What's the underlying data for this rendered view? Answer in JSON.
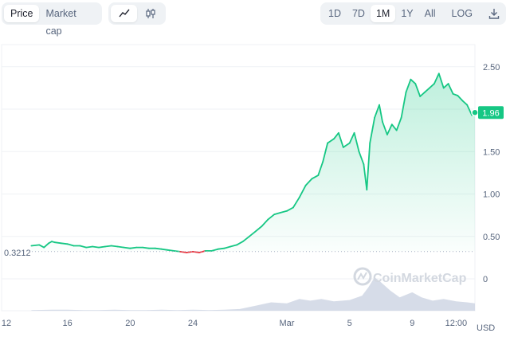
{
  "toolbar": {
    "metric_tabs": [
      {
        "label": "Price",
        "active": true
      },
      {
        "label": "Market cap",
        "active": false
      }
    ],
    "chart_type_icons": [
      {
        "icon": "line-chart-icon",
        "active": true
      },
      {
        "icon": "candlestick-icon",
        "active": false
      }
    ],
    "range_tabs": [
      {
        "label": "1D",
        "active": false
      },
      {
        "label": "7D",
        "active": false
      },
      {
        "label": "1M",
        "active": true
      },
      {
        "label": "1Y",
        "active": false
      },
      {
        "label": "All",
        "active": false
      }
    ],
    "log_label": "LOG",
    "download_icon": "download-icon"
  },
  "watermark": "CoinMarketCap",
  "colors": {
    "up": "#16c784",
    "down": "#ea3943",
    "volume": "#cfd6e4",
    "grid": "#eff2f5"
  },
  "chart_data": {
    "type": "line",
    "title": "",
    "xlabel": "",
    "ylabel": "",
    "currency_label": "USD",
    "baseline": {
      "value": 0.3212,
      "label": "0.3212"
    },
    "current": {
      "value": 1.96,
      "label": "1.96"
    },
    "ylim": [
      -0.2,
      2.7
    ],
    "y_ticks": [
      {
        "value": 0,
        "label": "0"
      },
      {
        "value": 0.5,
        "label": "0.50"
      },
      {
        "value": 1.0,
        "label": "1.00"
      },
      {
        "value": 1.5,
        "label": "1.50"
      },
      {
        "value": 2.0,
        "label": "2.00"
      },
      {
        "value": 2.5,
        "label": "2.50"
      }
    ],
    "x_ticks": [
      {
        "value": 0,
        "label": "12"
      },
      {
        "value": 4,
        "label": "16"
      },
      {
        "value": 8,
        "label": "20"
      },
      {
        "value": 12,
        "label": "24"
      },
      {
        "value": 18,
        "label": "Mar"
      },
      {
        "value": 22,
        "label": "5"
      },
      {
        "value": 26,
        "label": "9"
      },
      {
        "value": 28.8,
        "label": "12:00"
      }
    ],
    "xlim": [
      0,
      30
    ],
    "series": [
      {
        "points": [
          [
            1.7,
            0.39
          ],
          [
            2.2,
            0.4
          ],
          [
            2.5,
            0.37
          ],
          [
            2.8,
            0.42
          ],
          [
            3.0,
            0.44
          ],
          [
            3.2,
            0.43
          ],
          [
            3.6,
            0.42
          ],
          [
            4.0,
            0.41
          ],
          [
            4.4,
            0.39
          ],
          [
            4.8,
            0.39
          ],
          [
            5.2,
            0.37
          ],
          [
            5.6,
            0.38
          ],
          [
            6.0,
            0.37
          ],
          [
            6.4,
            0.38
          ],
          [
            6.8,
            0.39
          ],
          [
            7.2,
            0.38
          ],
          [
            7.6,
            0.37
          ],
          [
            8.0,
            0.36
          ],
          [
            8.4,
            0.37
          ],
          [
            8.8,
            0.37
          ],
          [
            9.2,
            0.36
          ],
          [
            9.6,
            0.36
          ],
          [
            10.0,
            0.35
          ],
          [
            10.4,
            0.34
          ],
          [
            10.8,
            0.33
          ],
          [
            11.2,
            0.32
          ],
          [
            11.6,
            0.31
          ],
          [
            12.0,
            0.32
          ],
          [
            12.4,
            0.31
          ],
          [
            12.8,
            0.33
          ],
          [
            13.2,
            0.33
          ],
          [
            13.6,
            0.35
          ],
          [
            14.0,
            0.36
          ],
          [
            14.4,
            0.38
          ],
          [
            14.8,
            0.4
          ],
          [
            15.2,
            0.44
          ],
          [
            15.6,
            0.5
          ],
          [
            16.0,
            0.56
          ],
          [
            16.4,
            0.62
          ],
          [
            16.8,
            0.7
          ],
          [
            17.2,
            0.76
          ],
          [
            17.6,
            0.78
          ],
          [
            18.0,
            0.8
          ],
          [
            18.4,
            0.84
          ],
          [
            18.8,
            0.96
          ],
          [
            19.2,
            1.1
          ],
          [
            19.6,
            1.18
          ],
          [
            20.0,
            1.22
          ],
          [
            20.3,
            1.38
          ],
          [
            20.6,
            1.6
          ],
          [
            21.0,
            1.65
          ],
          [
            21.3,
            1.72
          ],
          [
            21.6,
            1.55
          ],
          [
            22.0,
            1.6
          ],
          [
            22.3,
            1.72
          ],
          [
            22.6,
            1.5
          ],
          [
            22.9,
            1.35
          ],
          [
            23.1,
            1.05
          ],
          [
            23.3,
            1.6
          ],
          [
            23.6,
            1.9
          ],
          [
            23.9,
            2.05
          ],
          [
            24.1,
            1.85
          ],
          [
            24.4,
            1.7
          ],
          [
            24.7,
            1.82
          ],
          [
            25.0,
            1.75
          ],
          [
            25.3,
            1.9
          ],
          [
            25.6,
            2.2
          ],
          [
            25.9,
            2.35
          ],
          [
            26.2,
            2.3
          ],
          [
            26.5,
            2.15
          ],
          [
            26.8,
            2.2
          ],
          [
            27.1,
            2.25
          ],
          [
            27.4,
            2.3
          ],
          [
            27.7,
            2.42
          ],
          [
            28.0,
            2.25
          ],
          [
            28.3,
            2.3
          ],
          [
            28.6,
            2.18
          ],
          [
            28.9,
            2.16
          ],
          [
            29.2,
            2.1
          ],
          [
            29.5,
            2.05
          ],
          [
            29.8,
            1.93
          ],
          [
            30.0,
            1.96
          ]
        ]
      }
    ],
    "volume": [
      [
        1.7,
        0.02
      ],
      [
        3.0,
        0.03
      ],
      [
        4.0,
        0.03
      ],
      [
        5.0,
        0.02
      ],
      [
        6.0,
        0.02
      ],
      [
        7.0,
        0.03
      ],
      [
        8.0,
        0.02
      ],
      [
        9.0,
        0.02
      ],
      [
        10.0,
        0.03
      ],
      [
        11.0,
        0.02
      ],
      [
        12.0,
        0.03
      ],
      [
        13.0,
        0.02
      ],
      [
        14.0,
        0.03
      ],
      [
        15.0,
        0.05
      ],
      [
        16.0,
        0.15
      ],
      [
        17.0,
        0.25
      ],
      [
        18.0,
        0.22
      ],
      [
        18.8,
        0.35
      ],
      [
        19.5,
        0.3
      ],
      [
        20.2,
        0.35
      ],
      [
        21.0,
        0.28
      ],
      [
        22.0,
        0.32
      ],
      [
        22.8,
        0.45
      ],
      [
        23.2,
        0.7
      ],
      [
        23.6,
        1.0
      ],
      [
        24.0,
        0.85
      ],
      [
        24.6,
        0.6
      ],
      [
        25.2,
        0.4
      ],
      [
        26.0,
        0.55
      ],
      [
        26.6,
        0.4
      ],
      [
        27.3,
        0.3
      ],
      [
        28.0,
        0.35
      ],
      [
        28.8,
        0.28
      ],
      [
        29.5,
        0.25
      ],
      [
        30.0,
        0.22
      ]
    ]
  }
}
